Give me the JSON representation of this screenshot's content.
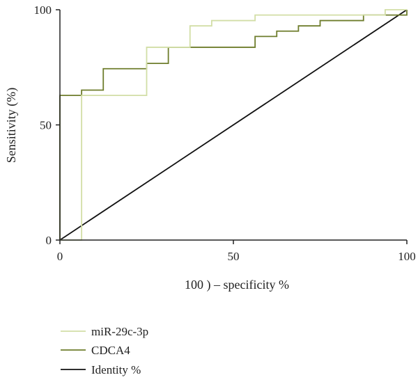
{
  "chart_data": {
    "type": "line",
    "title": "",
    "xlabel": "100 ) – specificity %",
    "ylabel": "Sensitivity (%)",
    "xlim": [
      0,
      100
    ],
    "ylim": [
      0,
      100
    ],
    "xticks": [
      "0",
      "50",
      "100"
    ],
    "yticks": [
      "0",
      "50",
      "100"
    ],
    "grid": false,
    "legend_position": "bottom-left",
    "series": [
      {
        "name": "miR-29c-3p",
        "color": "#d2dea6",
        "step": true,
        "x": [
          0,
          6.25,
          6.25,
          25,
          25,
          37.5,
          37.5,
          43.75,
          43.75,
          56.25,
          56.25,
          93.75,
          93.75,
          100
        ],
        "y": [
          0,
          0,
          62.8,
          62.8,
          83.7,
          83.7,
          93,
          93,
          95.3,
          95.3,
          97.7,
          97.7,
          100,
          100
        ]
      },
      {
        "name": "CDCA4",
        "color": "#6e7d2c",
        "step": true,
        "x": [
          0,
          0,
          6.25,
          6.25,
          12.5,
          12.5,
          25,
          25,
          31.25,
          31.25,
          56.25,
          56.25,
          62.5,
          62.5,
          68.75,
          68.75,
          75,
          75,
          87.5,
          87.5,
          100,
          100
        ],
        "y": [
          0,
          62.8,
          62.8,
          65.1,
          65.1,
          74.4,
          74.4,
          76.7,
          76.7,
          83.7,
          83.7,
          88.4,
          88.4,
          90.7,
          90.7,
          93,
          93,
          95.3,
          95.3,
          97.7,
          97.7,
          100
        ]
      },
      {
        "name": "Identity %",
        "color": "#111111",
        "step": false,
        "x": [
          0,
          100
        ],
        "y": [
          0,
          100
        ]
      }
    ]
  }
}
